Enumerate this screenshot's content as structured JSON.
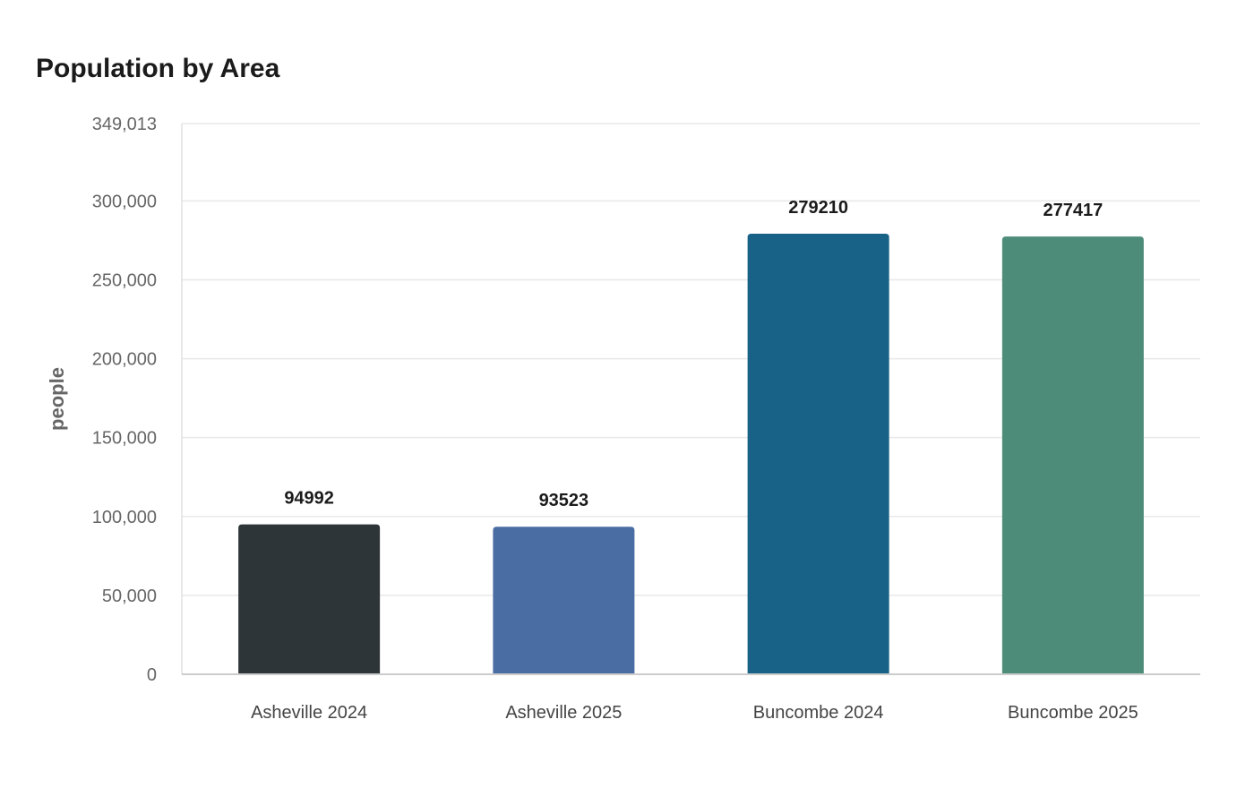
{
  "chart_data": {
    "type": "bar",
    "title": "Population by Area",
    "xlabel": "",
    "ylabel": "people",
    "categories": [
      "Asheville 2024",
      "Asheville 2025",
      "Buncombe 2024",
      "Buncombe 2025"
    ],
    "values": [
      94992,
      93523,
      279210,
      277417
    ],
    "value_labels": [
      "94992",
      "93523",
      "279210",
      "277417"
    ],
    "colors": [
      "#2d3538",
      "#4a6da3",
      "#186187",
      "#4e8c7a"
    ],
    "ylim": [
      0,
      349013
    ],
    "yticks": [
      0,
      50000,
      100000,
      150000,
      200000,
      250000,
      300000,
      349013
    ],
    "ytick_labels": [
      "0",
      "50,000",
      "100,000",
      "150,000",
      "200,000",
      "250,000",
      "300,000",
      "349,013"
    ],
    "grid": true,
    "legend": "none"
  }
}
